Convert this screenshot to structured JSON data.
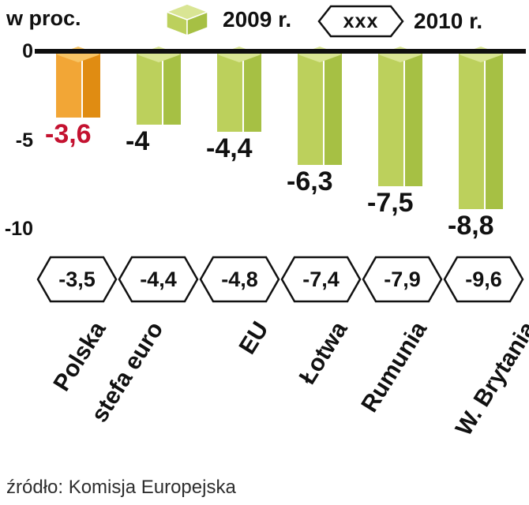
{
  "chart_data": {
    "type": "bar",
    "title": "",
    "unit_label": "w proc.",
    "categories": [
      "Polska",
      "stefa euro",
      "EU",
      "Łotwa",
      "Rumunia",
      "W. Brytania"
    ],
    "series": [
      {
        "name": "2009 r.",
        "values": [
          -3.6,
          -4,
          -4.4,
          -6.3,
          -7.5,
          -8.8
        ],
        "labels": [
          "-3,6",
          "-4",
          "-4,4",
          "-6,3",
          "-7,5",
          "-8,8"
        ]
      },
      {
        "name": "2010 r.",
        "values": [
          -3.5,
          -4.4,
          -4.8,
          -7.4,
          -7.9,
          -9.6
        ],
        "labels": [
          "-3,5",
          "-4,4",
          "-4,8",
          "-7,4",
          "-7,9",
          "-9,6"
        ]
      }
    ],
    "legend": [
      {
        "label": "2009 r.",
        "marker": "3d-bar"
      },
      {
        "label": "2010 r.",
        "marker": "hexagon",
        "marker_text": "xxx"
      }
    ],
    "yticks": [
      "0",
      "-5",
      "-10"
    ],
    "ylim": [
      -10.5,
      0
    ],
    "grid": false,
    "legend_position": "top",
    "source": "źródło: Komisja Europejska",
    "colors": {
      "bar_2009": "#bcd05c",
      "bar_2009_dark": "#a6c044",
      "bar_2009_top": "#d9e594",
      "highlight": "#f2a636",
      "highlight_dark": "#e08c12",
      "highlight_top": "#f7c465",
      "highlight_label": "#c41230",
      "axis": "#0e0e0e"
    }
  }
}
